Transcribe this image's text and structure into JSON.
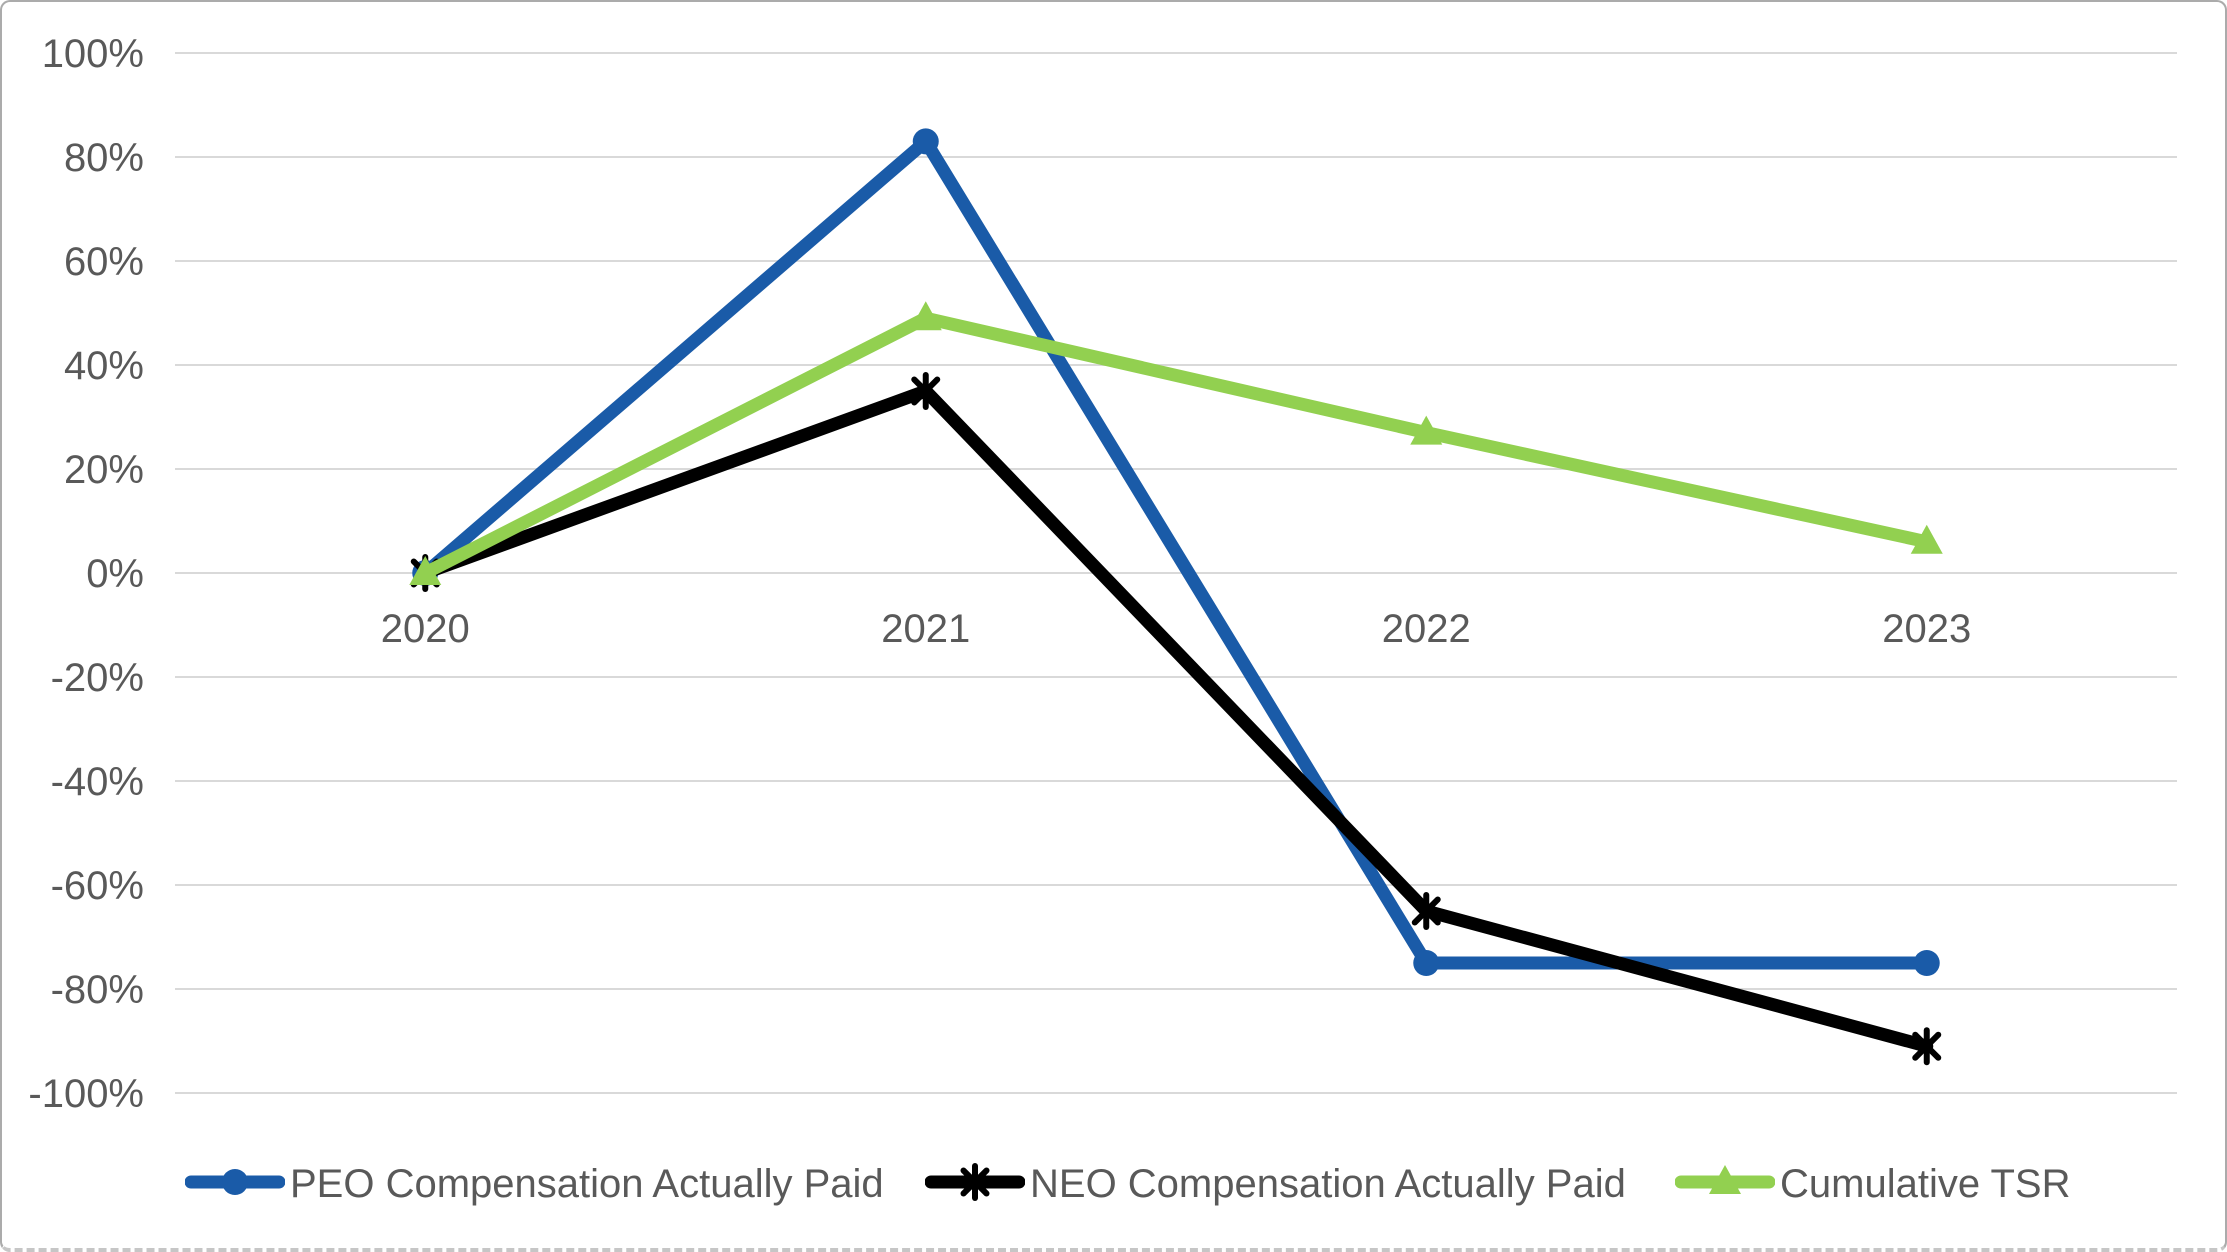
{
  "chart_data": {
    "type": "line",
    "categories": [
      "2020",
      "2021",
      "2022",
      "2023"
    ],
    "series": [
      {
        "name": "PEO Compensation Actually Paid",
        "color": "#1A5BA8",
        "marker": "circle",
        "values": [
          0,
          83,
          -75,
          -75
        ]
      },
      {
        "name": "NEO Compensation Actually Paid",
        "color": "#000000",
        "marker": "asterisk",
        "values": [
          0,
          35,
          -65,
          -91
        ]
      },
      {
        "name": "Cumulative TSR",
        "color": "#92D050",
        "marker": "triangle",
        "values": [
          0,
          49,
          27,
          6
        ]
      }
    ],
    "title": "",
    "xlabel": "",
    "ylabel": "",
    "ylim": [
      -100,
      100
    ],
    "ytick_step": 20,
    "ytick_labels": [
      "100%",
      "80%",
      "60%",
      "40%",
      "20%",
      "0%",
      "-20%",
      "-40%",
      "-60%",
      "-80%",
      "-100%"
    ],
    "ytick_format": "percent",
    "grid": true,
    "gridline_color": "#D9D9D9",
    "axis_text_color": "#595959",
    "legend_position": "bottom"
  }
}
